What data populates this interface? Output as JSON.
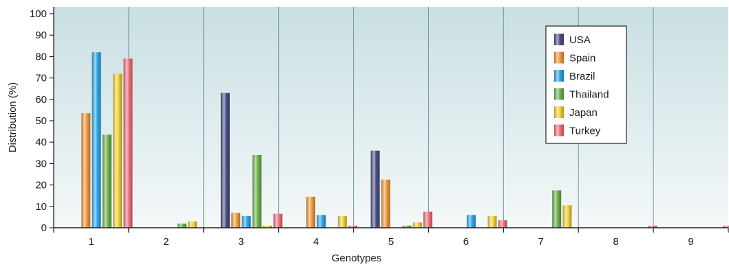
{
  "chart_data": {
    "type": "bar",
    "xlabel": "Genotypes",
    "ylabel": "Distribution (%)",
    "ylim": [
      0,
      100
    ],
    "yticks": [
      0,
      10,
      20,
      30,
      40,
      50,
      60,
      70,
      80,
      90,
      100
    ],
    "categories": [
      "1",
      "2",
      "3",
      "4",
      "5",
      "6",
      "7",
      "8",
      "9"
    ],
    "legend_position": "top-right",
    "series": [
      {
        "name": "USA",
        "color": "#4a4f86",
        "values": [
          0,
          0,
          63,
          0,
          36,
          0,
          0,
          0,
          0
        ]
      },
      {
        "name": "Spain",
        "color": "#f19a3e",
        "values": [
          53.5,
          0,
          7,
          14.5,
          22.5,
          0,
          0,
          0,
          0
        ]
      },
      {
        "name": "Brazil",
        "color": "#2da7e8",
        "values": [
          82,
          0,
          5.5,
          6,
          0,
          6,
          0,
          0,
          0
        ]
      },
      {
        "name": "Thailand",
        "color": "#6fb24d",
        "values": [
          43.5,
          2,
          34,
          0,
          1,
          0,
          17.5,
          0,
          0
        ]
      },
      {
        "name": "Japan",
        "color": "#f2d23a",
        "values": [
          72,
          3,
          1,
          5.5,
          2.5,
          5.5,
          10.5,
          0,
          0
        ]
      },
      {
        "name": "Turkey",
        "color": "#f0707a",
        "values": [
          79,
          0,
          6.5,
          1,
          7.5,
          3.5,
          0,
          1,
          1
        ]
      }
    ]
  }
}
